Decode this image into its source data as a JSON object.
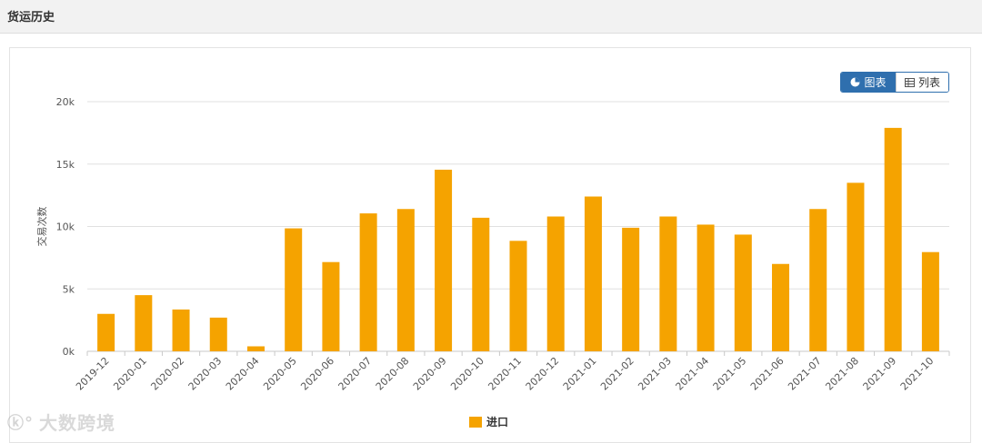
{
  "header": {
    "title": "货运历史"
  },
  "toggle": {
    "chart_label": "图表",
    "list_label": "列表"
  },
  "watermark": {
    "text": "大数跨境"
  },
  "colors": {
    "bar": "#f5a300",
    "accent": "#2f6fae"
  },
  "chart_data": {
    "type": "bar",
    "title": "",
    "xlabel": "",
    "ylabel": "交易次数",
    "categories": [
      "2019-12",
      "2020-01",
      "2020-02",
      "2020-03",
      "2020-04",
      "2020-05",
      "2020-06",
      "2020-07",
      "2020-08",
      "2020-09",
      "2020-10",
      "2020-11",
      "2020-12",
      "2021-01",
      "2021-02",
      "2021-03",
      "2021-04",
      "2021-05",
      "2021-06",
      "2021-07",
      "2021-08",
      "2021-09",
      "2021-10"
    ],
    "series": [
      {
        "name": "进口",
        "values": [
          3000,
          4500,
          3350,
          2700,
          400,
          9850,
          7150,
          11050,
          11400,
          14550,
          10700,
          8850,
          10800,
          12400,
          9900,
          10800,
          10150,
          9350,
          7000,
          11400,
          13500,
          17900,
          7950
        ]
      }
    ],
    "ylim": [
      0,
      20000
    ],
    "yticks": [
      "0k",
      "5k",
      "10k",
      "15k",
      "20k"
    ],
    "grid": true,
    "legend": "bottom-center"
  }
}
